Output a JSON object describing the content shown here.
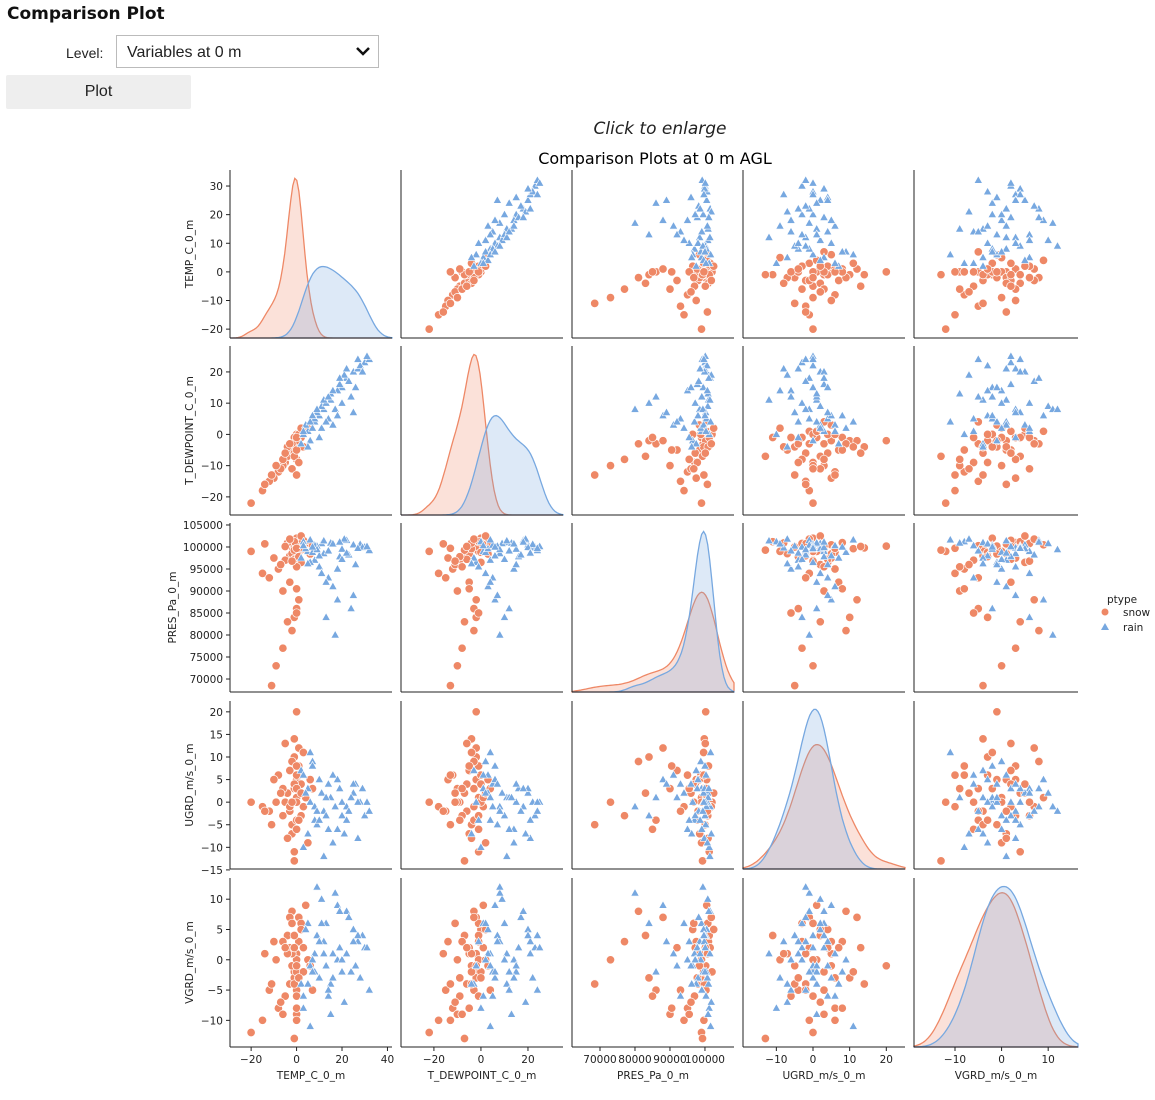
{
  "header": {
    "title": "Comparison Plot",
    "level_label": "Level:",
    "level_value": "Variables at 0 m",
    "plot_button": "Plot",
    "enlarge_hint": "Click to enlarge"
  },
  "chart_data": {
    "type": "pairplot",
    "title": "Comparison Plots at 0 m AGL",
    "variables": [
      "TEMP_C_0_m",
      "T_DEWPOINT_C_0_m",
      "PRES_Pa_0_m",
      "UGRD_m/s_0_m",
      "VGRD_m/s_0_m"
    ],
    "ranges": [
      [
        -29.3,
        42
      ],
      [
        -34,
        34.9
      ],
      [
        62000,
        108300
      ],
      [
        -19.1,
        25.1
      ],
      [
        -18.8,
        16.4
      ]
    ],
    "x_ticks": [
      [
        -20,
        0,
        20,
        40
      ],
      [
        -20,
        0,
        20
      ],
      [
        70000,
        80000,
        90000,
        100000
      ],
      [
        -10,
        0,
        10,
        20
      ],
      [
        -10,
        0,
        10
      ]
    ],
    "y_ticks": [
      [
        -20,
        -10,
        0,
        10,
        20,
        30
      ],
      [
        -20,
        -10,
        0,
        10,
        20
      ],
      [
        70000,
        75000,
        80000,
        85000,
        90000,
        95000,
        100000,
        105000
      ],
      [
        -15,
        -10,
        -5,
        0,
        5,
        10,
        15,
        20
      ],
      [
        -10,
        -5,
        0,
        5,
        10
      ]
    ],
    "y_ranges": [
      [
        -23.1,
        35.6
      ],
      [
        -25.8,
        28.3
      ],
      [
        67050,
        105450
      ],
      [
        -14.8,
        22.4
      ],
      [
        -14.4,
        13.5
      ]
    ],
    "diagonal": "kde",
    "legend": {
      "title": "ptype",
      "placement": "right",
      "entries": [
        {
          "name": "snow",
          "color": "#ee8866",
          "marker": "circle"
        },
        {
          "name": "rain",
          "color": "#77a8e0",
          "marker": "triangle"
        }
      ]
    },
    "series": [
      {
        "name": "snow",
        "records": [
          [
            -1,
            -3,
            99500,
            3,
            -2
          ],
          [
            0,
            -2,
            100500,
            5,
            1
          ],
          [
            -3,
            -6,
            98000,
            -2,
            -4
          ],
          [
            1,
            -1,
            101000,
            8,
            3
          ],
          [
            -5,
            -9,
            97000,
            0,
            -6
          ],
          [
            2,
            0,
            96500,
            4,
            5
          ],
          [
            -2,
            -4,
            100000,
            -5,
            -1
          ],
          [
            0,
            -1,
            99000,
            1,
            0
          ],
          [
            -8,
            -12,
            95000,
            6,
            -8
          ],
          [
            3,
            1,
            101500,
            -1,
            2
          ],
          [
            -1,
            -2,
            84000,
            10,
            -3
          ],
          [
            -4,
            -7,
            83000,
            2,
            4
          ],
          [
            0,
            -3,
            86000,
            -4,
            -5
          ],
          [
            1,
            -2,
            88000,
            12,
            7
          ],
          [
            -6,
            -10,
            90000,
            3,
            -9
          ],
          [
            -2,
            -5,
            98500,
            -7,
            1
          ],
          [
            0,
            0,
            102000,
            0,
            -2
          ],
          [
            -10,
            -14,
            97500,
            5,
            3
          ],
          [
            -1,
            -4,
            99800,
            14,
            -4
          ],
          [
            2,
            -1,
            100800,
            -3,
            6
          ],
          [
            -15,
            -18,
            94000,
            -1,
            -10
          ],
          [
            -3,
            -5,
            92000,
            7,
            2
          ],
          [
            0,
            -2,
            100200,
            20,
            -1
          ],
          [
            5,
            2,
            99000,
            -9,
            0
          ],
          [
            -7,
            -11,
            96000,
            2,
            -7
          ],
          [
            -1,
            -1,
            101200,
            -11,
            4
          ],
          [
            1,
            0,
            98800,
            6,
            -3
          ],
          [
            -20,
            -22,
            99000,
            0,
            -12
          ],
          [
            -2,
            -3,
            81000,
            9,
            8
          ],
          [
            0,
            -1,
            85000,
            -6,
            -6
          ],
          [
            4,
            1,
            100500,
            1,
            9
          ],
          [
            -12,
            -15,
            93000,
            -2,
            -5
          ],
          [
            -1,
            -6,
            97200,
            4,
            2
          ],
          [
            3,
            -4,
            99600,
            11,
            -2
          ],
          [
            -4,
            -4,
            100900,
            -8,
            1
          ],
          [
            0,
            -8,
            95500,
            3,
            -9
          ],
          [
            -9,
            -10,
            73000,
            0,
            0
          ],
          [
            -6,
            -8,
            77000,
            -3,
            3
          ],
          [
            -11,
            -13,
            68500,
            -5,
            -4
          ],
          [
            2,
            2,
            102500,
            2,
            5
          ],
          [
            -1,
            -7,
            99300,
            -13,
            -13
          ],
          [
            6,
            3,
            98400,
            5,
            -1
          ],
          [
            -3,
            -3,
            101800,
            -1,
            7
          ],
          [
            0,
            -5,
            90500,
            8,
            -8
          ],
          [
            -5,
            -6,
            100100,
            13,
            2
          ],
          [
            1,
            -9,
            97800,
            -4,
            -3
          ],
          [
            -2,
            -11,
            96800,
            0,
            6
          ],
          [
            7,
            4,
            100300,
            3,
            -5
          ],
          [
            -14,
            -16,
            100700,
            -2,
            1
          ],
          [
            0,
            -13,
            99700,
            6,
            -10
          ]
        ]
      },
      {
        "name": "rain",
        "records": [
          [
            12,
            8,
            98500,
            -2,
            3
          ],
          [
            20,
            15,
            99500,
            0,
            -2
          ],
          [
            25,
            20,
            100500,
            2,
            5
          ],
          [
            8,
            4,
            97000,
            -4,
            1
          ],
          [
            15,
            11,
            101000,
            1,
            -4
          ],
          [
            30,
            23,
            100000,
            -3,
            2
          ],
          [
            5,
            1,
            99000,
            3,
            6
          ],
          [
            18,
            14,
            95000,
            -6,
            0
          ],
          [
            10,
            6,
            98000,
            5,
            -3
          ],
          [
            22,
            18,
            101500,
            -1,
            8
          ],
          [
            14,
            5,
            93000,
            4,
            -6
          ],
          [
            27,
            21,
            99800,
            -8,
            3
          ],
          [
            6,
            -2,
            96500,
            0,
            -1
          ],
          [
            11,
            9,
            100800,
            2,
            10
          ],
          [
            32,
            24,
            99200,
            -2,
            -5
          ],
          [
            16,
            3,
            91000,
            6,
            1
          ],
          [
            9,
            7,
            100200,
            -5,
            4
          ],
          [
            24,
            12,
            86000,
            1,
            -2
          ],
          [
            3,
            0,
            101200,
            -10,
            -8
          ],
          [
            19,
            16,
            97800,
            3,
            2
          ],
          [
            13,
            10,
            84000,
            -3,
            6
          ],
          [
            28,
            22,
            100600,
            0,
            -3
          ],
          [
            7,
            2,
            98800,
            9,
            0
          ],
          [
            17,
            8,
            80000,
            -1,
            11
          ],
          [
            21,
            19,
            101800,
            -7,
            -7
          ],
          [
            4,
            3,
            99600,
            2,
            5
          ],
          [
            26,
            15,
            96000,
            4,
            -1
          ],
          [
            10,
            -1,
            95500,
            -4,
            3
          ],
          [
            15,
            13,
            100900,
            1,
            -9
          ],
          [
            23,
            17,
            98200,
            -2,
            7
          ],
          [
            2,
            -3,
            97500,
            7,
            -4
          ],
          [
            12,
            11,
            101400,
            -12,
            1
          ],
          [
            29,
            20,
            99900,
            3,
            4
          ],
          [
            8,
            5,
            100400,
            -1,
            -2
          ],
          [
            18,
            6,
            88000,
            5,
            9
          ],
          [
            14,
            12,
            99100,
            -6,
            -5
          ],
          [
            31,
            25,
            100100,
            0,
            2
          ],
          [
            6,
            4,
            101600,
            11,
            -11
          ],
          [
            20,
            10,
            97200,
            -3,
            0
          ],
          [
            11,
            2,
            94000,
            2,
            6
          ],
          [
            16,
            14,
            100700,
            -9,
            -3
          ],
          [
            25,
            7,
            89000,
            4,
            3
          ],
          [
            9,
            8,
            99400,
            -2,
            12
          ],
          [
            3,
            1,
            100300,
            6,
            -6
          ],
          [
            22,
            21,
            98600,
            -4,
            1
          ],
          [
            13,
            4,
            92000,
            1,
            -1
          ],
          [
            19,
            18,
            101100,
            3,
            8
          ],
          [
            5,
            -4,
            96200,
            -7,
            -4
          ],
          [
            27,
            24,
            99700,
            0,
            4
          ],
          [
            7,
            6,
            100000,
            8,
            -2
          ]
        ]
      }
    ]
  }
}
